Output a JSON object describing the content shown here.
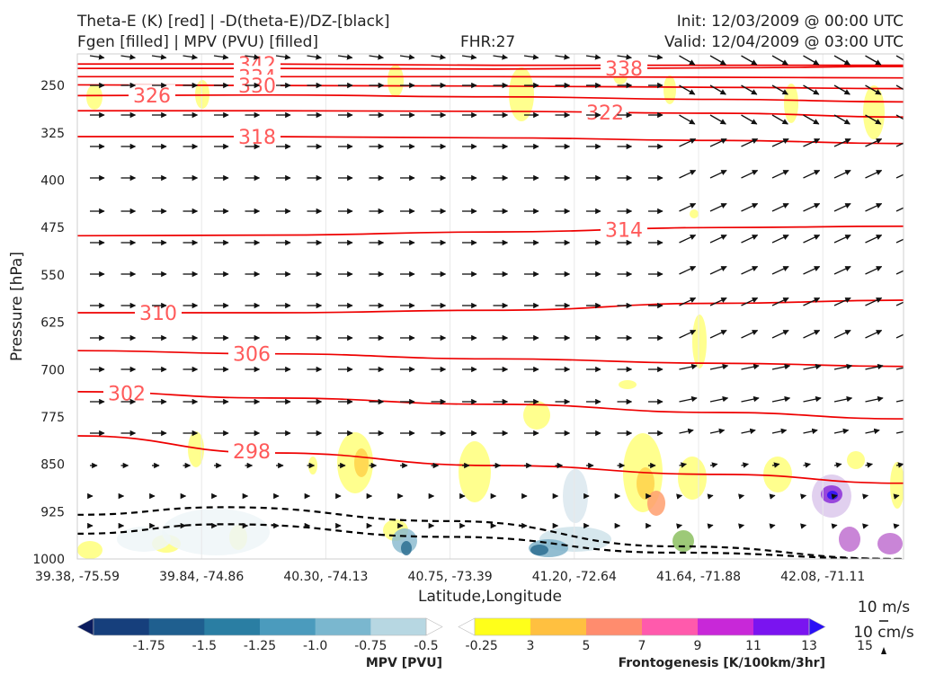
{
  "header": {
    "line1_left": "Theta-E (K) [red] | -D(theta-E)/DZ-[black]",
    "line2_left": "Fgen [filled] | MPV (PVU) [filled]",
    "fhr": "FHR:27",
    "init": "Init: 12/03/2009 @ 00:00 UTC",
    "valid": "Valid: 12/04/2009 @ 03:00 UTC"
  },
  "chart_data": {
    "type": "cross-section",
    "ylabel": "Pressure [hPa]",
    "xlabel": "Latitude,Longitude",
    "yticks": [
      250,
      325,
      400,
      475,
      550,
      625,
      700,
      775,
      850,
      925,
      1000
    ],
    "ylim": [
      1000,
      200
    ],
    "xticks": [
      "39.38, -75.59",
      "39.84, -74.86",
      "40.30, -74.13",
      "40.75, -73.39",
      "41.20, -72.64",
      "41.64, -71.88",
      "42.08, -71.11"
    ],
    "theta_e_contours": [
      {
        "value": 342,
        "label": "342",
        "pressure": [
          216,
          216,
          218,
          218,
          218
        ]
      },
      {
        "value": 338,
        "label": "338",
        "pressure": [
          223,
          223,
          224,
          222,
          220
        ]
      },
      {
        "value": 334,
        "label": "334",
        "pressure": [
          236,
          236,
          236,
          237,
          238
        ]
      },
      {
        "value": 330,
        "label": "330",
        "pressure": [
          249,
          250,
          251,
          253,
          255
        ]
      },
      {
        "value": 326,
        "label": "326",
        "pressure": [
          266,
          265,
          268,
          272,
          276
        ]
      },
      {
        "value": 322,
        "label": "322",
        "pressure": [
          290,
          290,
          291,
          294,
          300
        ]
      },
      {
        "value": 318,
        "label": "318",
        "pressure": [
          331,
          331,
          333,
          337,
          342
        ]
      },
      {
        "value": 314,
        "label": "314",
        "pressure": [
          488,
          487,
          482,
          475,
          473
        ]
      },
      {
        "value": 310,
        "label": "310",
        "pressure": [
          610,
          610,
          606,
          595,
          590
        ]
      },
      {
        "value": 306,
        "label": "306",
        "pressure": [
          670,
          675,
          683,
          690,
          695
        ]
      },
      {
        "value": 302,
        "label": "302",
        "pressure": [
          735,
          745,
          755,
          768,
          778
        ]
      },
      {
        "value": 298,
        "label": "298",
        "pressure": [
          805,
          832,
          852,
          866,
          880
        ]
      }
    ],
    "neg_stability_contours": [
      {
        "style": "dashed",
        "pressure": [
          930,
          918,
          940,
          980,
          1000
        ]
      },
      {
        "style": "dashed",
        "pressure": [
          960,
          945,
          965,
          990,
          1000
        ]
      }
    ],
    "colorbar_mpv": {
      "label": "MPV [PVU]",
      "ticks": [
        "-1.75",
        "-1.5",
        "-1.25",
        "-1.0",
        "-0.75",
        "-0.5",
        "-0.25"
      ],
      "colors": [
        "#0b1c5e",
        "#163f7c",
        "#1f5f8f",
        "#2a7ea3",
        "#4b9bbd",
        "#7ab7cf",
        "#b7d7e2",
        "#ffffff"
      ]
    },
    "colorbar_fgen": {
      "label": "Frontogenesis [K/100km/3hr]",
      "ticks": [
        "3",
        "5",
        "7",
        "9",
        "11",
        "13",
        "15"
      ],
      "colors": [
        "#ffffff",
        "#ffff1a",
        "#ffc040",
        "#ff8c6e",
        "#ff5aac",
        "#c828d8",
        "#7a14f0",
        "#2a10f5"
      ]
    },
    "wind_key": {
      "horizontal": "10 m/s",
      "vertical": "10 cm/s"
    }
  }
}
